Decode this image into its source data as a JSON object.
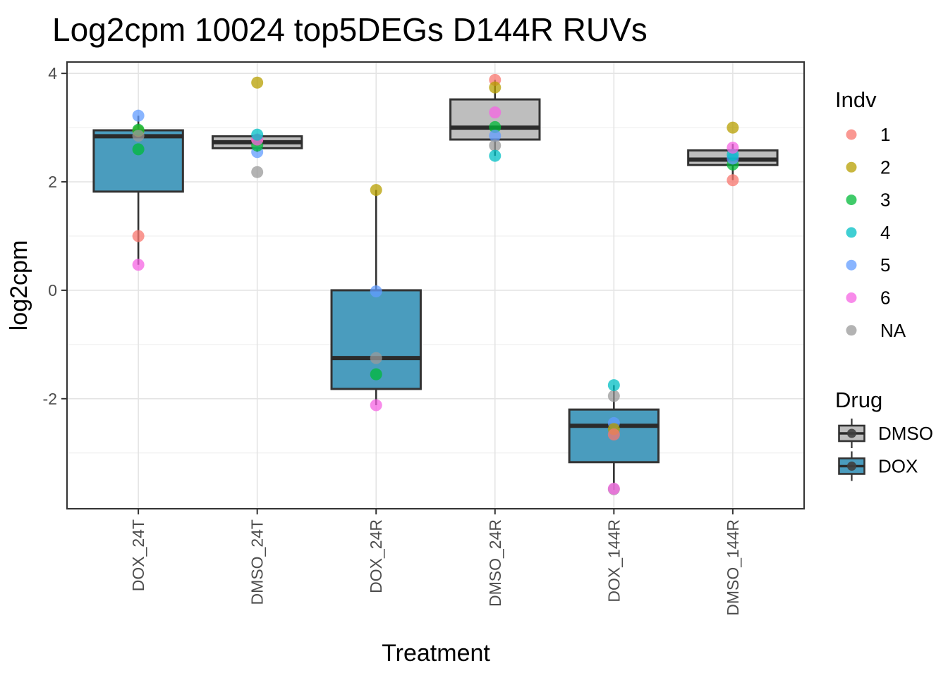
{
  "title": "Log2cpm 10024 top5DEGs D144R RUVs",
  "chart_data": {
    "type": "boxplot",
    "title": "Log2cpm 10024 top5DEGs D144R RUVs",
    "xlabel": "Treatment",
    "ylabel": "log2cpm",
    "ylim": [
      -4.03,
      4.21
    ],
    "yticks_major": [
      4,
      2,
      0,
      -2
    ],
    "yticks_minor": [
      3,
      1,
      -1,
      -3
    ],
    "grid": "on",
    "categories": [
      "DOX_24T",
      "DMSO_24T",
      "DOX_24R",
      "DMSO_24R",
      "DOX_144R",
      "DMSO_144R"
    ],
    "groups": [
      {
        "label": "DOX_24T",
        "drug": "DOX",
        "stats": {
          "whisker_low": 0.47,
          "q1": 1.82,
          "median": 2.84,
          "q3": 2.95,
          "whisker_high": 3.22
        },
        "points": [
          {
            "indv": "2",
            "value": 2.94
          },
          {
            "indv": "3",
            "value": 2.96
          },
          {
            "indv": "NA",
            "value": 2.85
          },
          {
            "indv": "3",
            "value": 2.6
          },
          {
            "indv": "5",
            "value": 3.22
          },
          {
            "indv": "1",
            "value": 1.0
          },
          {
            "indv": "6",
            "value": 0.47
          }
        ]
      },
      {
        "label": "DMSO_24T",
        "drug": "DMSO",
        "stats": {
          "whisker_low": 2.55,
          "q1": 2.62,
          "median": 2.73,
          "q3": 2.84,
          "whisker_high": 2.88
        },
        "points": [
          {
            "indv": "1",
            "value": 2.77
          },
          {
            "indv": "2",
            "value": 3.83
          },
          {
            "indv": "NA",
            "value": 2.18
          },
          {
            "indv": "5",
            "value": 2.55
          },
          {
            "indv": "3",
            "value": 2.67
          },
          {
            "indv": "6",
            "value": 2.78
          },
          {
            "indv": "4",
            "value": 2.87
          }
        ]
      },
      {
        "label": "DOX_24R",
        "drug": "DOX",
        "stats": {
          "whisker_low": -2.12,
          "q1": -1.82,
          "median": -1.25,
          "q3": 0.0,
          "whisker_high": 1.85
        },
        "points": [
          {
            "indv": "2",
            "value": 1.85
          },
          {
            "indv": "5",
            "value": -0.02
          },
          {
            "indv": "NA",
            "value": -1.25
          },
          {
            "indv": "3",
            "value": -1.55
          },
          {
            "indv": "6",
            "value": -2.12
          }
        ]
      },
      {
        "label": "DMSO_24R",
        "drug": "DMSO",
        "stats": {
          "whisker_low": 2.48,
          "q1": 2.78,
          "median": 3.0,
          "q3": 3.52,
          "whisker_high": 3.88
        },
        "points": [
          {
            "indv": "1",
            "value": 3.88
          },
          {
            "indv": "2",
            "value": 3.74
          },
          {
            "indv": "6",
            "value": 3.28
          },
          {
            "indv": "3",
            "value": 3.01
          },
          {
            "indv": "5",
            "value": 2.85
          },
          {
            "indv": "NA",
            "value": 2.67
          },
          {
            "indv": "4",
            "value": 2.48
          }
        ]
      },
      {
        "label": "DOX_144R",
        "drug": "DOX",
        "stats": {
          "whisker_low": -3.68,
          "q1": -3.17,
          "median": -2.5,
          "q3": -2.2,
          "whisker_high": -1.75
        },
        "points": [
          {
            "indv": "NA",
            "value": -1.95
          },
          {
            "indv": "4",
            "value": -1.75
          },
          {
            "indv": "5",
            "value": -2.45
          },
          {
            "indv": "2",
            "value": -2.56
          },
          {
            "indv": "1",
            "value": -2.66
          },
          {
            "indv": "NA",
            "value": -3.67
          },
          {
            "indv": "6",
            "value": -3.66
          }
        ]
      },
      {
        "label": "DMSO_144R",
        "drug": "DMSO",
        "stats": {
          "whisker_low": 2.03,
          "q1": 2.31,
          "median": 2.41,
          "q3": 2.58,
          "whisker_high": 2.7
        },
        "points": [
          {
            "indv": "1",
            "value": 2.03
          },
          {
            "indv": "3",
            "value": 2.32
          },
          {
            "indv": "5",
            "value": 2.43
          },
          {
            "indv": "4",
            "value": 2.5
          },
          {
            "indv": "6",
            "value": 2.63
          },
          {
            "indv": "2",
            "value": 3.0
          }
        ]
      }
    ],
    "legend": {
      "position": "right",
      "indv_title": "Indv",
      "indv_items": [
        {
          "label": "1",
          "color": "#F8766D"
        },
        {
          "label": "2",
          "color": "#B79F00"
        },
        {
          "label": "3",
          "color": "#00BA38"
        },
        {
          "label": "4",
          "color": "#00BFC4"
        },
        {
          "label": "5",
          "color": "#619CFF"
        },
        {
          "label": "6",
          "color": "#F564E3"
        },
        {
          "label": "NA",
          "color": "#999999"
        }
      ],
      "drug_title": "Drug",
      "drug_items": [
        {
          "label": "DMSO",
          "color": "#BEBEBE"
        },
        {
          "label": "DOX",
          "color": "#4A9CBE"
        }
      ]
    },
    "colors": {
      "dox_fill": "#4A9CBE",
      "dmso_fill": "#BEBEBE",
      "box_border": "#333333",
      "grid_major": "#E4E4E4",
      "grid_minor": "#F0F0F0",
      "axis_text": "#4D4D4D",
      "panel_border": "#333333"
    }
  }
}
